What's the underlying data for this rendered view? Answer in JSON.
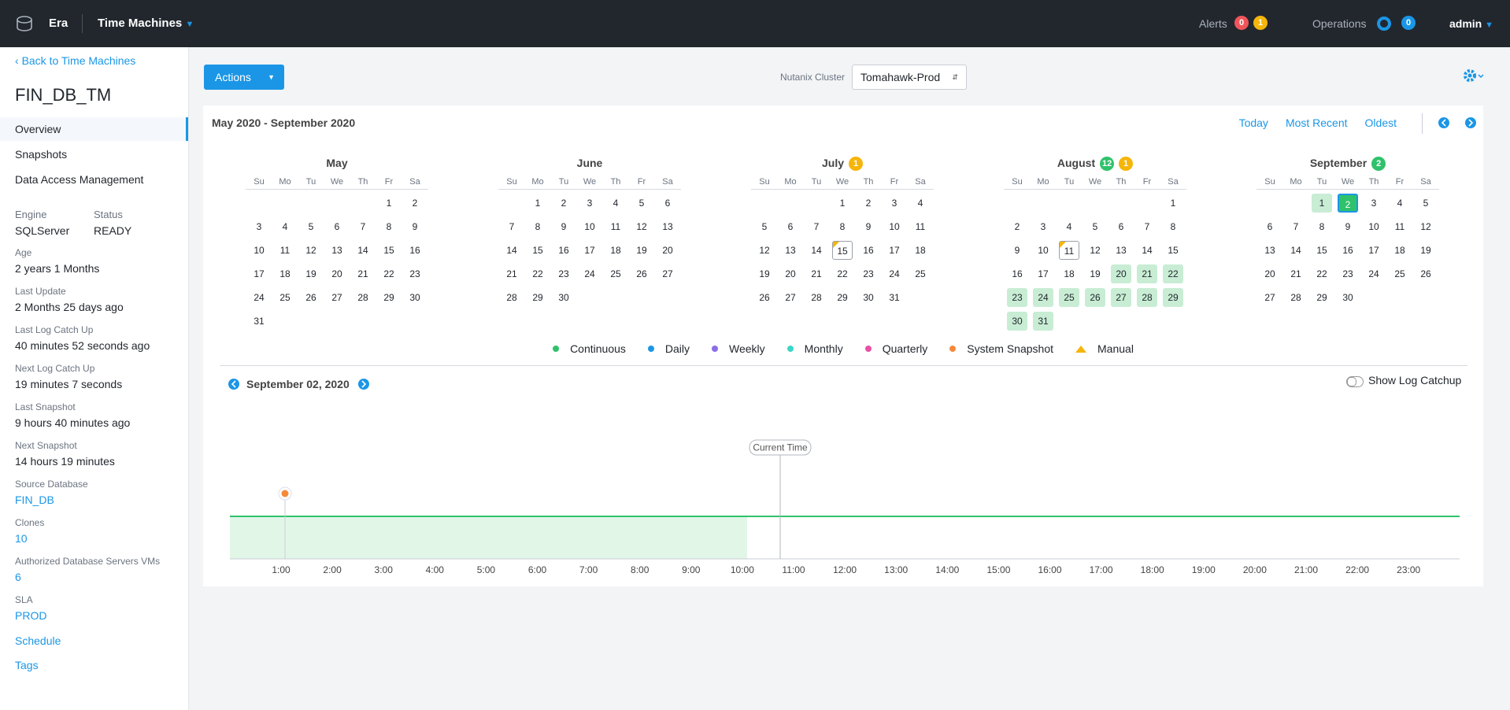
{
  "topbar": {
    "app": "Era",
    "section": "Time Machines",
    "alerts_label": "Alerts",
    "alerts": [
      {
        "value": 0,
        "color": "#f0555a"
      },
      {
        "value": 1,
        "color": "#f5b50a"
      }
    ],
    "operations_label": "Operations",
    "operations": {
      "value": 0,
      "color": "#1b96e6"
    },
    "user": "admin"
  },
  "sidebar": {
    "back": "Back to Time Machines",
    "title": "FIN_DB_TM",
    "nav": [
      "Overview",
      "Snapshots",
      "Data Access Management"
    ],
    "engine": {
      "label": "Engine",
      "value": "SQLServer"
    },
    "status": {
      "label": "Status",
      "value": "READY"
    },
    "properties": [
      {
        "label": "Age",
        "value": "2 years 1 Months"
      },
      {
        "label": "Last Update",
        "value": "2 Months 25 days ago"
      },
      {
        "label": "Last Log Catch Up",
        "value": "40 minutes 52 seconds ago"
      },
      {
        "label": "Next Log Catch Up",
        "value": "19 minutes 7 seconds"
      },
      {
        "label": "Last Snapshot",
        "value": "9 hours 40 minutes ago"
      },
      {
        "label": "Next Snapshot",
        "value": "14 hours 19 minutes"
      },
      {
        "label": "Source Database",
        "value": "FIN_DB",
        "link": true
      },
      {
        "label": "Clones",
        "value": "10",
        "link": true
      },
      {
        "label": "Authorized Database Servers VMs",
        "value": "6",
        "link": true
      },
      {
        "label": "SLA",
        "value": "PROD",
        "link": true
      }
    ],
    "links": [
      "Schedule",
      "Tags"
    ]
  },
  "toolbar": {
    "actions": "Actions",
    "cluster_label": "Nutanix Cluster",
    "cluster": "Tomahawk-Prod"
  },
  "calendar": {
    "range": "May 2020 - September 2020",
    "nav": [
      "Today",
      "Most Recent",
      "Oldest"
    ],
    "weekdays": [
      "Su",
      "Mo",
      "Tu",
      "We",
      "Th",
      "Fr",
      "Sa"
    ],
    "months": [
      {
        "name": "May",
        "badges": [],
        "continuous": [],
        "manual": [],
        "weeks": [
          [
            null,
            null,
            null,
            null,
            null,
            1,
            2
          ],
          [
            3,
            4,
            5,
            6,
            7,
            8,
            9
          ],
          [
            10,
            11,
            12,
            13,
            14,
            15,
            16
          ],
          [
            17,
            18,
            19,
            20,
            21,
            22,
            23
          ],
          [
            24,
            25,
            26,
            27,
            28,
            29,
            30
          ],
          [
            31
          ]
        ]
      },
      {
        "name": "June",
        "badges": [],
        "continuous": [],
        "manual": [],
        "weeks": [
          [
            null,
            1,
            2,
            3,
            4,
            5,
            6
          ],
          [
            7,
            8,
            9,
            10,
            11,
            12,
            13
          ],
          [
            14,
            15,
            16,
            17,
            18,
            19,
            20
          ],
          [
            21,
            22,
            23,
            24,
            25,
            26,
            27
          ],
          [
            28,
            29,
            30
          ]
        ]
      },
      {
        "name": "July",
        "badges": [
          {
            "value": 1,
            "color": "#f5b50a"
          }
        ],
        "continuous": [],
        "manual": [
          15
        ],
        "weeks": [
          [
            null,
            null,
            null,
            1,
            2,
            3,
            4
          ],
          [
            5,
            6,
            7,
            8,
            9,
            10,
            11
          ],
          [
            12,
            13,
            14,
            15,
            16,
            17,
            18
          ],
          [
            19,
            20,
            21,
            22,
            23,
            24,
            25
          ],
          [
            26,
            27,
            28,
            29,
            30,
            31
          ]
        ]
      },
      {
        "name": "August",
        "badges": [
          {
            "value": 12,
            "color": "#2fc26b"
          },
          {
            "value": 1,
            "color": "#f5b50a"
          }
        ],
        "continuous": [
          20,
          21,
          22,
          23,
          24,
          25,
          26,
          27,
          28,
          29,
          30,
          31
        ],
        "manual": [
          11
        ],
        "weeks": [
          [
            null,
            null,
            null,
            null,
            null,
            null,
            1
          ],
          [
            2,
            3,
            4,
            5,
            6,
            7,
            8
          ],
          [
            9,
            10,
            11,
            12,
            13,
            14,
            15
          ],
          [
            16,
            17,
            18,
            19,
            20,
            21,
            22
          ],
          [
            23,
            24,
            25,
            26,
            27,
            28,
            29
          ],
          [
            30,
            31
          ]
        ]
      },
      {
        "name": "September",
        "badges": [
          {
            "value": 2,
            "color": "#2fc26b"
          }
        ],
        "continuous": [
          1,
          2
        ],
        "manual": [],
        "selected": 2,
        "weeks": [
          [
            null,
            null,
            1,
            2,
            3,
            4,
            5
          ],
          [
            6,
            7,
            8,
            9,
            10,
            11,
            12
          ],
          [
            13,
            14,
            15,
            16,
            17,
            18,
            19
          ],
          [
            20,
            21,
            22,
            23,
            24,
            25,
            26
          ],
          [
            27,
            28,
            29,
            30
          ]
        ]
      }
    ]
  },
  "legend": [
    {
      "label": "Continuous",
      "color": "#2fc26b",
      "shape": "dot"
    },
    {
      "label": "Daily",
      "color": "#1b96e6",
      "shape": "dot"
    },
    {
      "label": "Weekly",
      "color": "#8a6ee6",
      "shape": "dot"
    },
    {
      "label": "Monthly",
      "color": "#3dd6c8",
      "shape": "dot"
    },
    {
      "label": "Quarterly",
      "color": "#e94fa5",
      "shape": "dot"
    },
    {
      "label": "System Snapshot",
      "color": "#f5893a",
      "shape": "dot"
    },
    {
      "label": "Manual",
      "color": "#f5b50a",
      "shape": "triangle"
    }
  ],
  "timeline": {
    "date": "September 02, 2020",
    "toggle": "Show Log Catchup",
    "current": "Current Time",
    "hours": [
      "1:00",
      "2:00",
      "3:00",
      "4:00",
      "5:00",
      "6:00",
      "7:00",
      "8:00",
      "9:00",
      "10:00",
      "11:00",
      "12:00",
      "13:00",
      "14:00",
      "15:00",
      "16:00",
      "17:00",
      "18:00",
      "19:00",
      "20:00",
      "21:00",
      "22:00",
      "23:00"
    ]
  }
}
